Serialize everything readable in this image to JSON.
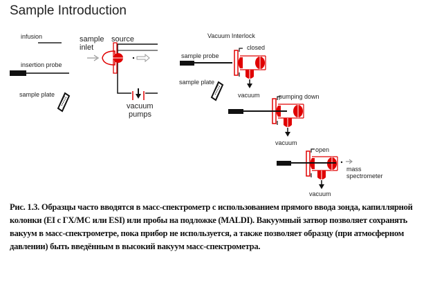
{
  "title": "Sample Introduction",
  "left_panel": {
    "infusion": "infusion",
    "insertion_probe": "insertion probe",
    "sample_plate": "sample plate",
    "sample_inlet_1": "sample",
    "sample_inlet_2": "inlet",
    "source": "source",
    "vacuum_pumps_1": "vacuum",
    "vacuum_pumps_2": "pumps"
  },
  "right_panel": {
    "title": "Vacuum Interlock",
    "sample_probe": "sample probe",
    "sample_plate": "sample plate",
    "stage1": {
      "state": "closed",
      "vacuum": "vacuum"
    },
    "stage2": {
      "state": "pumping down",
      "vacuum": "vacuum"
    },
    "stage3": {
      "state": "open",
      "vacuum": "vacuum",
      "dest_1": "mass",
      "dest_2": "spectrometer"
    }
  },
  "colors": {
    "accent": "#e00000",
    "line": "#111111"
  },
  "caption": {
    "label": "Рис. 1.3.",
    "text": "Образцы часто вводятся в масс-спектрометр с использованием прямого ввода зонда, капиллярной колонки (EI с ГХ/МС или ESI) или пробы на подложке (MALDI).  Вакуумный  затвор позволяет сохранять вакуум  в масс-спектрометре, пока прибор не используется,  а также позволяет образцу  (при атмосферном  давлении) быть введённым в высокий вакуум  масс-спектрометра."
  }
}
